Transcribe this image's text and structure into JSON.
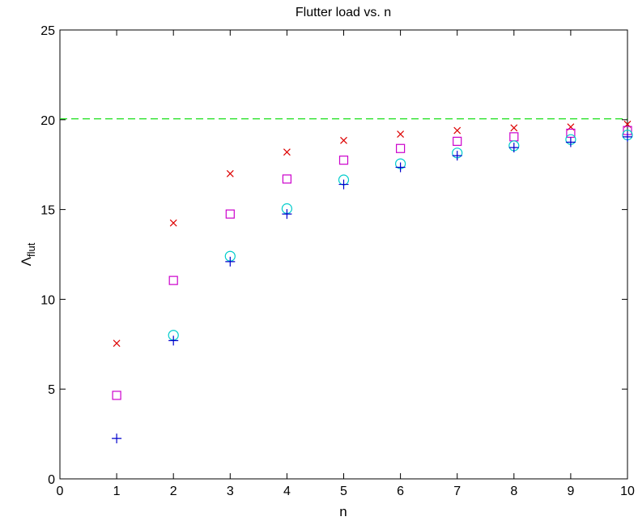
{
  "chart_data": {
    "type": "scatter",
    "title": "Flutter load vs. n",
    "xlabel": "n",
    "ylabel_main": "Λ",
    "ylabel_sub": "flut",
    "xlim": [
      0,
      10
    ],
    "ylim": [
      0,
      25
    ],
    "xticks": [
      0,
      1,
      2,
      3,
      4,
      5,
      6,
      7,
      8,
      9,
      10
    ],
    "yticks": [
      0,
      5,
      10,
      15,
      20,
      25
    ],
    "grid": false,
    "reference_line": {
      "y": 20.05,
      "color": "#00dd00",
      "style": "dashed"
    },
    "series": [
      {
        "marker": "x",
        "color": "#dd0000",
        "x": [
          1,
          2,
          3,
          4,
          5,
          6,
          7,
          8,
          9,
          10
        ],
        "y": [
          7.55,
          14.25,
          17.0,
          18.2,
          18.85,
          19.2,
          19.4,
          19.55,
          19.6,
          19.75
        ]
      },
      {
        "marker": "square",
        "color": "#cc00cc",
        "x": [
          1,
          2,
          3,
          4,
          5,
          6,
          7,
          8,
          9,
          10
        ],
        "y": [
          4.65,
          11.05,
          14.75,
          16.7,
          17.75,
          18.4,
          18.8,
          19.05,
          19.25,
          19.4
        ]
      },
      {
        "marker": "circle",
        "color": "#00cccc",
        "x": [
          2,
          3,
          4,
          5,
          6,
          7,
          8,
          9,
          10
        ],
        "y": [
          8.0,
          12.4,
          15.05,
          16.65,
          17.55,
          18.15,
          18.55,
          18.9,
          19.15
        ]
      },
      {
        "marker": "plus",
        "color": "#0000cc",
        "x": [
          1,
          2,
          3,
          4,
          5,
          6,
          7,
          8,
          9,
          10
        ],
        "y": [
          2.25,
          7.7,
          12.1,
          14.75,
          16.4,
          17.35,
          18.0,
          18.45,
          18.75,
          19.05
        ]
      }
    ]
  }
}
